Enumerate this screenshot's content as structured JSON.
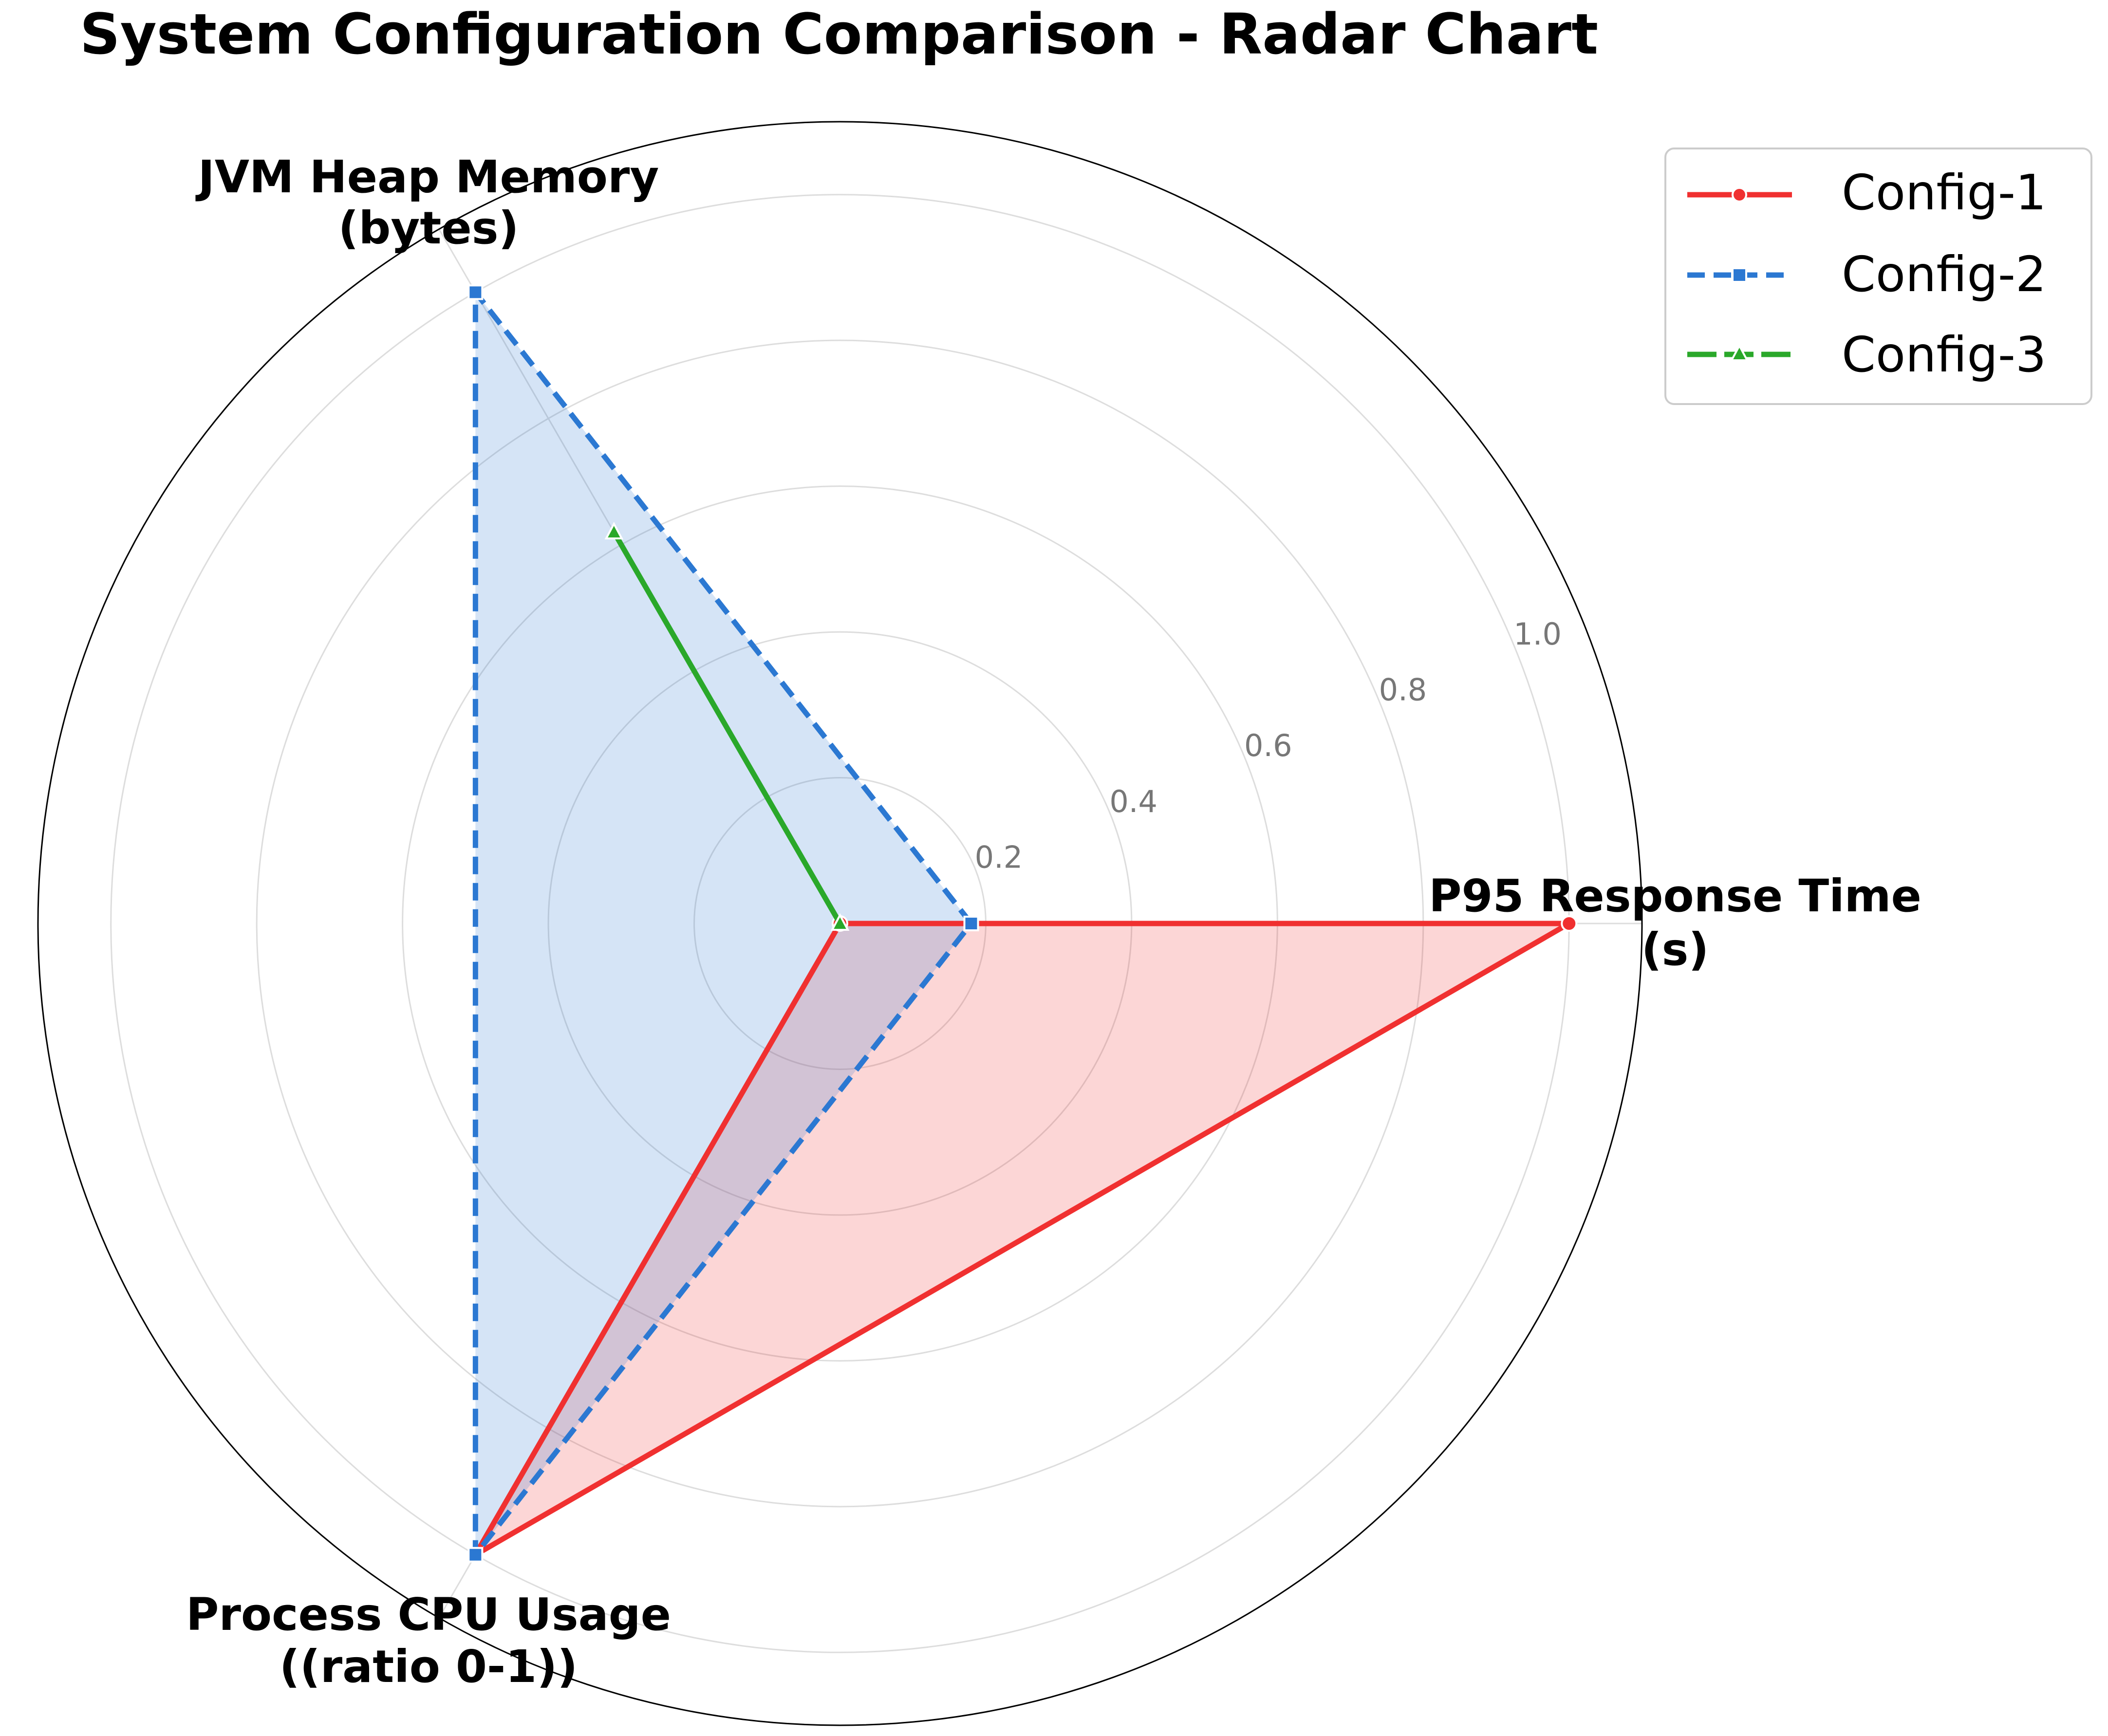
{
  "chart_data": {
    "type": "radar",
    "title": "System Configuration Comparison - Radar Chart",
    "axes": [
      {
        "label_line1": "P95 Response Time",
        "label_line2": "(s)"
      },
      {
        "label_line1": "JVM Heap Memory",
        "label_line2": "(bytes)"
      },
      {
        "label_line1": "Process CPU Usage",
        "label_line2": "((ratio 0-1))"
      }
    ],
    "rlim": [
      0,
      1.1
    ],
    "rticks": [
      0.2,
      0.4,
      0.6,
      0.8,
      1.0
    ],
    "rtick_labels": [
      "0.2",
      "0.4",
      "0.6",
      "0.8",
      "1.0"
    ],
    "grid": true,
    "legend_position": "top-right",
    "series": [
      {
        "name": "Config-1",
        "values": [
          1.0,
          0.0,
          1.0
        ],
        "color": "#f03030",
        "line_style": "solid",
        "marker": "circle",
        "fill": true
      },
      {
        "name": "Config-2",
        "values": [
          0.18,
          1.0,
          1.0
        ],
        "color": "#2b78d2",
        "line_style": "dashed",
        "marker": "square",
        "fill": true
      },
      {
        "name": "Config-3",
        "values": [
          0.0,
          0.62,
          0.0
        ],
        "color": "#2aa82a",
        "line_style": "solid",
        "marker": "triangle",
        "fill": false
      }
    ]
  }
}
